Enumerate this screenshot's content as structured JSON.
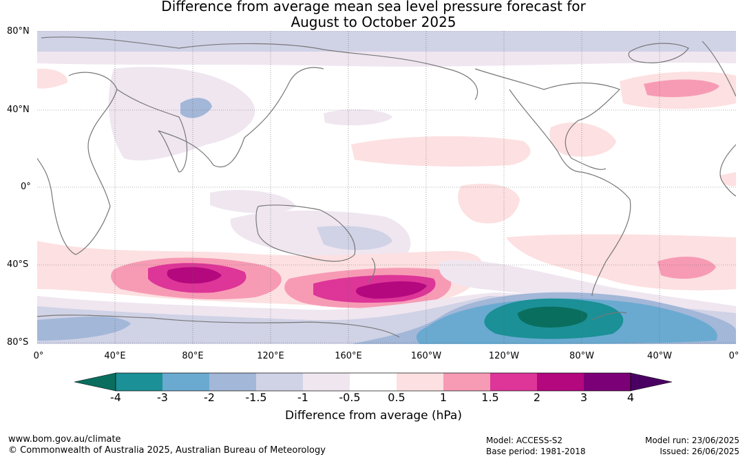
{
  "title": {
    "line1": "Difference from average mean sea level pressure forecast for",
    "line2": "August to October 2025"
  },
  "map": {
    "lat_labels": [
      "80°N",
      "40°N",
      "0°",
      "40°S",
      "80°S"
    ],
    "lon_labels": [
      "0°",
      "40°E",
      "80°E",
      "120°E",
      "160°E",
      "160°W",
      "120°W",
      "80°W",
      "40°W",
      "0°"
    ]
  },
  "colorbar": {
    "ticks": [
      "-4",
      "-3",
      "-2",
      "-1.5",
      "-1",
      "-0.5",
      "0.5",
      "1",
      "1.5",
      "2",
      "3",
      "4"
    ],
    "colors": [
      "#0a6e5f",
      "#1b9096",
      "#6aaad1",
      "#a3b7d8",
      "#d0d2e6",
      "#efe6f0",
      "#ffffff",
      "#fde0e1",
      "#f79bb5",
      "#dd3598",
      "#b3087e",
      "#7b0077",
      "#4a0062"
    ],
    "label": "Difference from average (hPa)"
  },
  "footer": {
    "url": "www.bom.gov.au/climate",
    "copyright": "© Commonwealth of Australia 2025, Australian Bureau of Meteorology",
    "model": "Model: ACCESS-S2",
    "base_period": "Base period: 1981-2018",
    "model_run": "Model run: 23/06/2025",
    "issued": "Issued: 26/06/2025"
  }
}
